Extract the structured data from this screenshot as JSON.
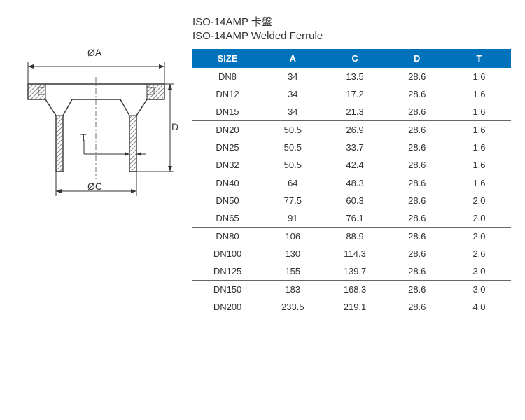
{
  "title": {
    "cn": "ISO-14AMP 卡盤",
    "en": "ISO-14AMP Welded Ferrule"
  },
  "diagram": {
    "label_oa": "ØA",
    "label_oc": "ØC",
    "label_d": "D",
    "label_t": "T",
    "stroke": "#333333",
    "hatch": "#999999"
  },
  "table": {
    "header_bg": "#0072bc",
    "header_fg": "#ffffff",
    "columns": [
      "SIZE",
      "A",
      "C",
      "D",
      "T"
    ],
    "groups": [
      [
        {
          "size": "DN8",
          "a": "34",
          "c": "13.5",
          "d": "28.6",
          "t": "1.6"
        },
        {
          "size": "DN12",
          "a": "34",
          "c": "17.2",
          "d": "28.6",
          "t": "1.6"
        },
        {
          "size": "DN15",
          "a": "34",
          "c": "21.3",
          "d": "28.6",
          "t": "1.6"
        }
      ],
      [
        {
          "size": "DN20",
          "a": "50.5",
          "c": "26.9",
          "d": "28.6",
          "t": "1.6"
        },
        {
          "size": "DN25",
          "a": "50.5",
          "c": "33.7",
          "d": "28.6",
          "t": "1.6"
        },
        {
          "size": "DN32",
          "a": "50.5",
          "c": "42.4",
          "d": "28.6",
          "t": "1.6"
        }
      ],
      [
        {
          "size": "DN40",
          "a": "64",
          "c": "48.3",
          "d": "28.6",
          "t": "1.6"
        },
        {
          "size": "DN50",
          "a": "77.5",
          "c": "60.3",
          "d": "28.6",
          "t": "2.0"
        },
        {
          "size": "DN65",
          "a": "91",
          "c": "76.1",
          "d": "28.6",
          "t": "2.0"
        }
      ],
      [
        {
          "size": "DN80",
          "a": "106",
          "c": "88.9",
          "d": "28.6",
          "t": "2.0"
        },
        {
          "size": "DN100",
          "a": "130",
          "c": "114.3",
          "d": "28.6",
          "t": "2.6"
        },
        {
          "size": "DN125",
          "a": "155",
          "c": "139.7",
          "d": "28.6",
          "t": "3.0"
        }
      ],
      [
        {
          "size": "DN150",
          "a": "183",
          "c": "168.3",
          "d": "28.6",
          "t": "3.0"
        },
        {
          "size": "DN200",
          "a": "233.5",
          "c": "219.1",
          "d": "28.6",
          "t": "4.0"
        }
      ]
    ]
  }
}
